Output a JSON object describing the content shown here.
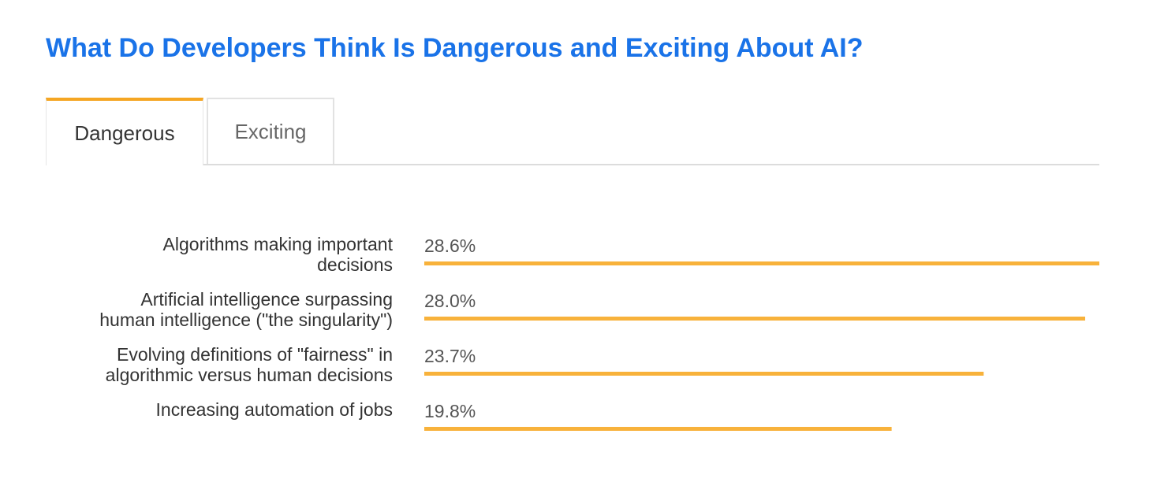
{
  "title": "What Do Developers Think Is Dangerous and Exciting About AI?",
  "tabs": [
    {
      "label": "Dangerous",
      "active": true
    },
    {
      "label": "Exciting",
      "active": false
    }
  ],
  "colors": {
    "title": "#1a73e8",
    "tab_accent": "#f5a623",
    "bar": "#f8b23b"
  },
  "chart_data": {
    "type": "bar",
    "orientation": "horizontal",
    "categories": [
      [
        "Algorithms making important",
        "decisions"
      ],
      [
        "Artificial intelligence surpassing",
        "human intelligence (\"the singularity\")"
      ],
      [
        "Evolving definitions of \"fairness\" in",
        "algorithmic versus human decisions"
      ],
      [
        "Increasing automation of jobs"
      ]
    ],
    "values": [
      28.6,
      28.0,
      23.7,
      19.8
    ],
    "value_labels": [
      "28.6%",
      "28.0%",
      "23.7%",
      "19.8%"
    ],
    "xlim": [
      0,
      28.6
    ],
    "grid": false,
    "legend": "none"
  }
}
